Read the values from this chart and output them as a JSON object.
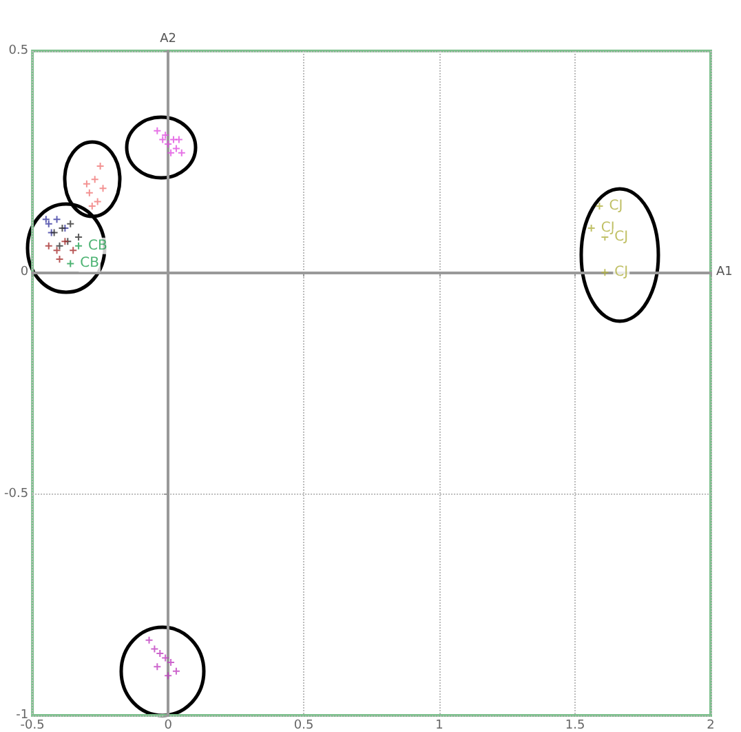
{
  "chart_data": {
    "type": "scatter",
    "xlabel": "A1",
    "ylabel": "A2",
    "xlim": [
      -0.5,
      2
    ],
    "ylim": [
      -1,
      0.5
    ],
    "xticks": [
      -0.5,
      0,
      0.5,
      1,
      1.5,
      2
    ],
    "yticks": [
      -1,
      -0.5,
      0,
      0.5
    ],
    "grid": true,
    "marker": "cross",
    "series": [
      {
        "color": "#e050e0",
        "x": [
          -0.04,
          -0.02,
          0.0,
          0.02,
          0.03,
          0.05,
          -0.01,
          0.01,
          0.04
        ],
        "values": [
          0.32,
          0.3,
          0.29,
          0.3,
          0.28,
          0.27,
          0.31,
          0.27,
          0.3
        ]
      },
      {
        "color": "#f07878",
        "x": [
          -0.25,
          -0.27,
          -0.24,
          -0.29,
          -0.28,
          -0.26,
          -0.3
        ],
        "values": [
          0.24,
          0.21,
          0.19,
          0.18,
          0.15,
          0.16,
          0.2
        ]
      },
      {
        "color": "#3838a0",
        "x": [
          -0.45,
          -0.44,
          -0.41,
          -0.38,
          -0.43
        ],
        "values": [
          0.12,
          0.11,
          0.12,
          0.1,
          0.09
        ]
      },
      {
        "color": "#303030",
        "x": [
          -0.42,
          -0.39,
          -0.36,
          -0.33,
          -0.37,
          -0.4
        ],
        "values": [
          0.09,
          0.1,
          0.11,
          0.08,
          0.07,
          0.06
        ]
      },
      {
        "color": "#a83030",
        "x": [
          -0.44,
          -0.41,
          -0.38,
          -0.35,
          -0.4
        ],
        "values": [
          0.06,
          0.05,
          0.07,
          0.05,
          0.03
        ]
      },
      {
        "name": "CB",
        "color": "#20a050",
        "x": [
          -0.33,
          -0.36
        ],
        "values": [
          0.06,
          0.02
        ]
      },
      {
        "name": "CJ",
        "color": "#b0b040",
        "x": [
          1.59,
          1.56,
          1.61,
          1.61
        ],
        "values": [
          0.15,
          0.1,
          0.08,
          0.0
        ]
      },
      {
        "color": "#c040c0",
        "x": [
          -0.07,
          -0.05,
          -0.03,
          -0.01,
          0.01,
          0.03,
          -0.04,
          0.0
        ],
        "values": [
          -0.83,
          -0.85,
          -0.86,
          -0.87,
          -0.88,
          -0.9,
          -0.89,
          -0.91
        ]
      }
    ]
  }
}
